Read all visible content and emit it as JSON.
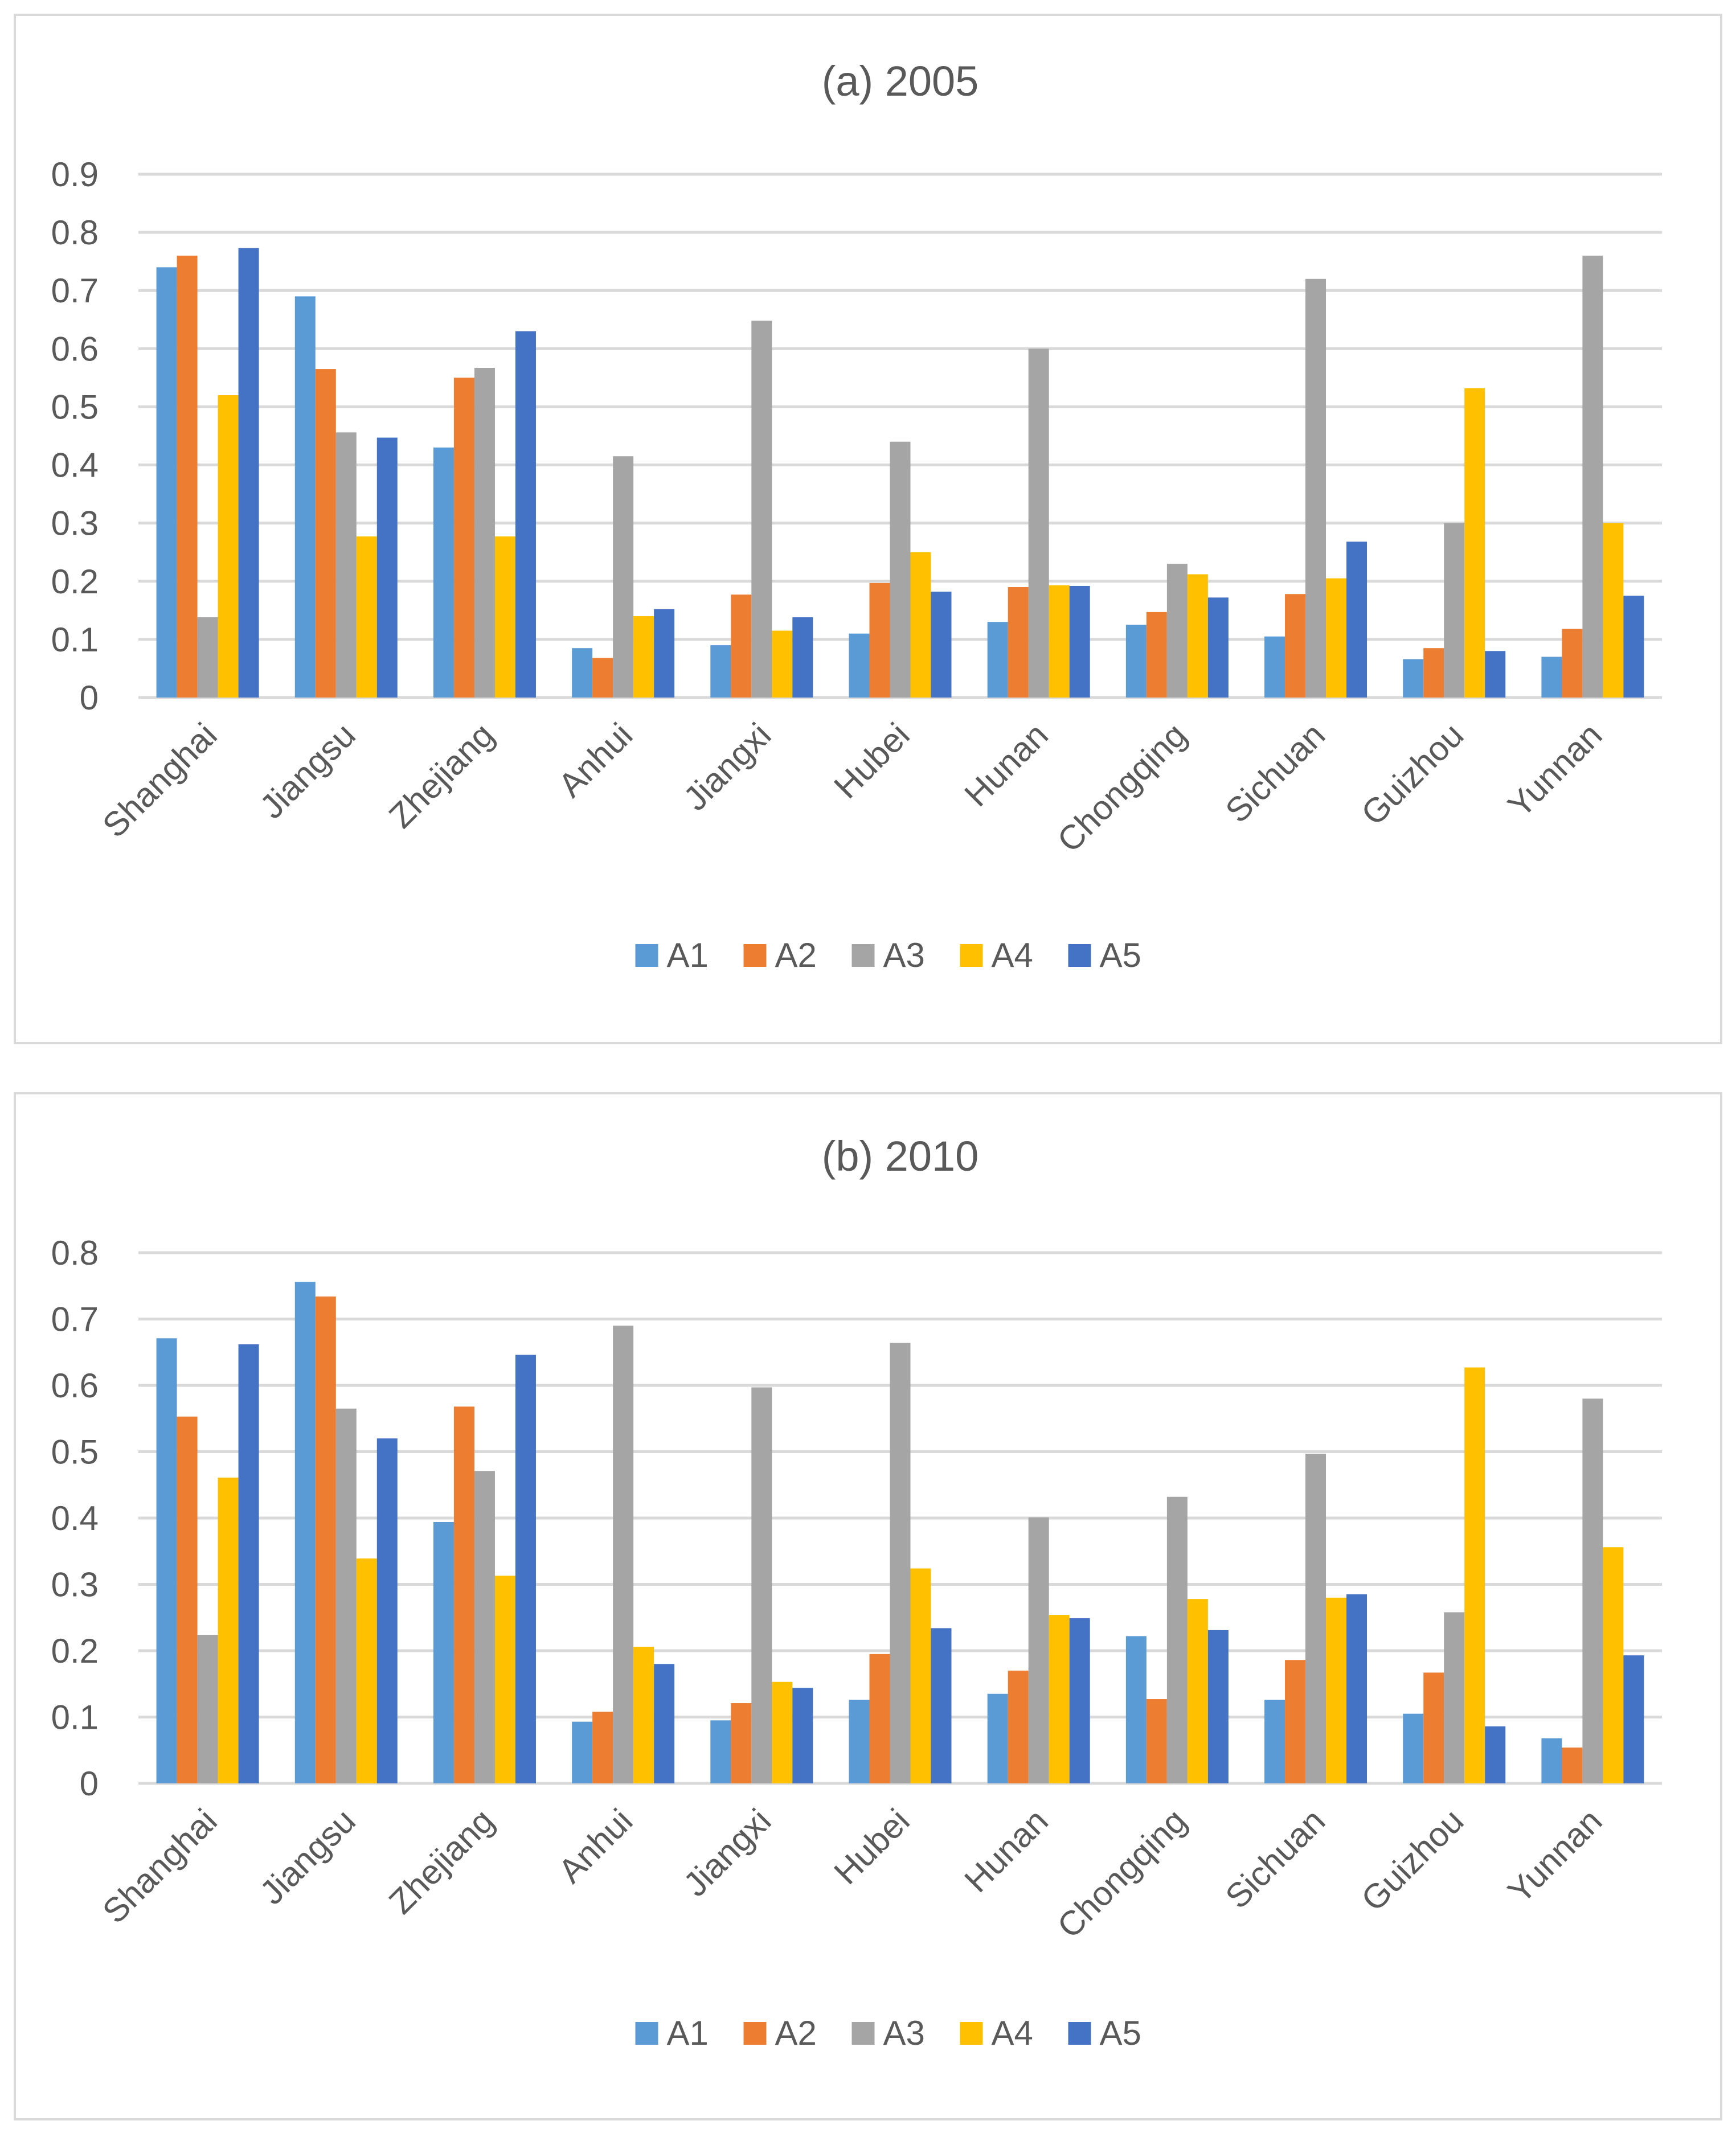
{
  "colors": {
    "A1": "#5b9bd5",
    "A2": "#ed7d31",
    "A3": "#a5a5a5",
    "A4": "#ffc000",
    "A5": "#4472c4"
  },
  "chart_data": [
    {
      "type": "bar",
      "title": "(a) 2005",
      "xlabel": "",
      "ylabel": "",
      "ylim": [
        0,
        0.9
      ],
      "yticks": [
        "0",
        "0.1",
        "0.2",
        "0.3",
        "0.4",
        "0.5",
        "0.6",
        "0.7",
        "0.8",
        "0.9"
      ],
      "legend_position": "bottom",
      "categories": [
        "Shanghai",
        "Jiangsu",
        "Zhejiang",
        "Anhui",
        "Jiangxi",
        "Hubei",
        "Hunan",
        "Chongqing",
        "Sichuan",
        "Guizhou",
        "Yunnan"
      ],
      "series": [
        {
          "name": "A1",
          "values": [
            0.74,
            0.69,
            0.43,
            0.085,
            0.09,
            0.11,
            0.13,
            0.125,
            0.105,
            0.066,
            0.07
          ]
        },
        {
          "name": "A2",
          "values": [
            0.76,
            0.565,
            0.55,
            0.068,
            0.177,
            0.197,
            0.19,
            0.147,
            0.178,
            0.085,
            0.118
          ]
        },
        {
          "name": "A3",
          "values": [
            0.138,
            0.456,
            0.567,
            0.415,
            0.648,
            0.44,
            0.6,
            0.23,
            0.72,
            0.3,
            0.76
          ]
        },
        {
          "name": "A4",
          "values": [
            0.52,
            0.277,
            0.277,
            0.14,
            0.115,
            0.25,
            0.193,
            0.212,
            0.205,
            0.532,
            0.3
          ]
        },
        {
          "name": "A5",
          "values": [
            0.773,
            0.447,
            0.63,
            0.152,
            0.138,
            0.182,
            0.192,
            0.172,
            0.268,
            0.08,
            0.175
          ]
        }
      ]
    },
    {
      "type": "bar",
      "title": "(b) 2010",
      "xlabel": "",
      "ylabel": "",
      "ylim": [
        0,
        0.8
      ],
      "yticks": [
        "0",
        "0.1",
        "0.2",
        "0.3",
        "0.4",
        "0.5",
        "0.6",
        "0.7",
        "0.8"
      ],
      "legend_position": "bottom",
      "categories": [
        "Shanghai",
        "Jiangsu",
        "Zhejiang",
        "Anhui",
        "Jiangxi",
        "Hubei",
        "Hunan",
        "Chongqing",
        "Sichuan",
        "Guizhou",
        "Yunnan"
      ],
      "series": [
        {
          "name": "A1",
          "values": [
            0.671,
            0.756,
            0.394,
            0.093,
            0.095,
            0.126,
            0.135,
            0.222,
            0.126,
            0.105,
            0.068
          ]
        },
        {
          "name": "A2",
          "values": [
            0.553,
            0.734,
            0.568,
            0.108,
            0.121,
            0.195,
            0.17,
            0.127,
            0.186,
            0.167,
            0.054
          ]
        },
        {
          "name": "A3",
          "values": [
            0.224,
            0.565,
            0.471,
            0.69,
            0.597,
            0.664,
            0.401,
            0.432,
            0.497,
            0.258,
            0.58
          ]
        },
        {
          "name": "A4",
          "values": [
            0.461,
            0.339,
            0.313,
            0.206,
            0.153,
            0.324,
            0.254,
            0.278,
            0.28,
            0.627,
            0.356
          ]
        },
        {
          "name": "A5",
          "values": [
            0.662,
            0.52,
            0.646,
            0.18,
            0.144,
            0.234,
            0.249,
            0.231,
            0.285,
            0.086,
            0.193
          ]
        }
      ]
    }
  ]
}
